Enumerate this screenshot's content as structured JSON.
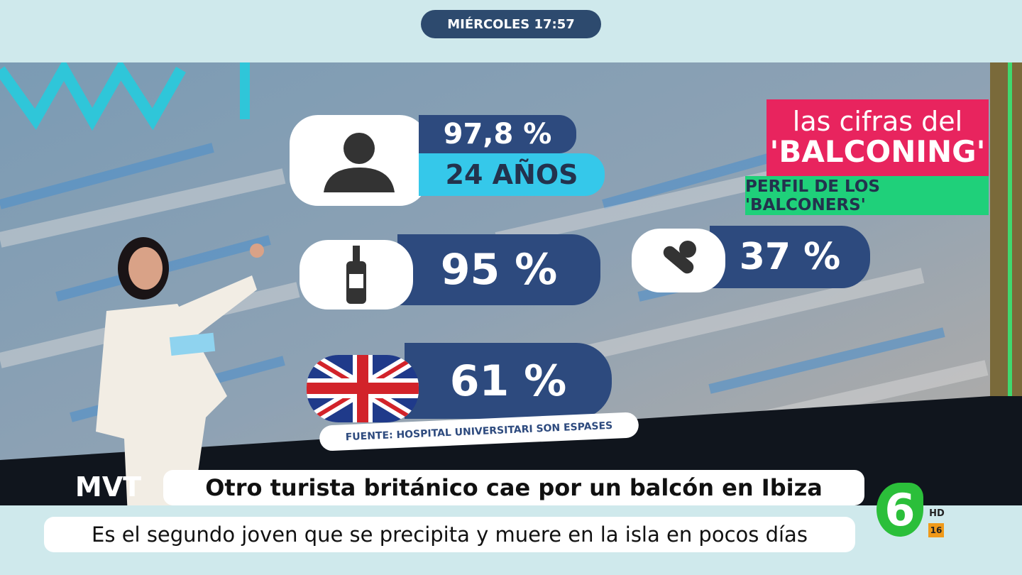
{
  "top_bar": {
    "time": "MIÉRCOLES 17:57"
  },
  "graphic": {
    "title_line1": "las cifras del",
    "title_line2": "'BALCONING'",
    "subtitle": "PERFIL DE LOS 'BALCONERS'",
    "stats": [
      {
        "value": "97,8 %",
        "detail": "24 AÑOS"
      },
      {
        "value": "95 %"
      },
      {
        "value": "37 %"
      },
      {
        "value": "61 %"
      }
    ],
    "source": "FUENTE: HOSPITAL UNIVERSITARI SON ESPASES"
  },
  "lower_third": {
    "logo": "MVT",
    "headline": "Otro turista británico cae por un balcón en Ibiza",
    "subheadline": "Es el segundo joven que se precipita y muere en la isla en pocos días"
  },
  "channel": {
    "logo": "6",
    "quality": "HD",
    "rating": "16"
  }
}
